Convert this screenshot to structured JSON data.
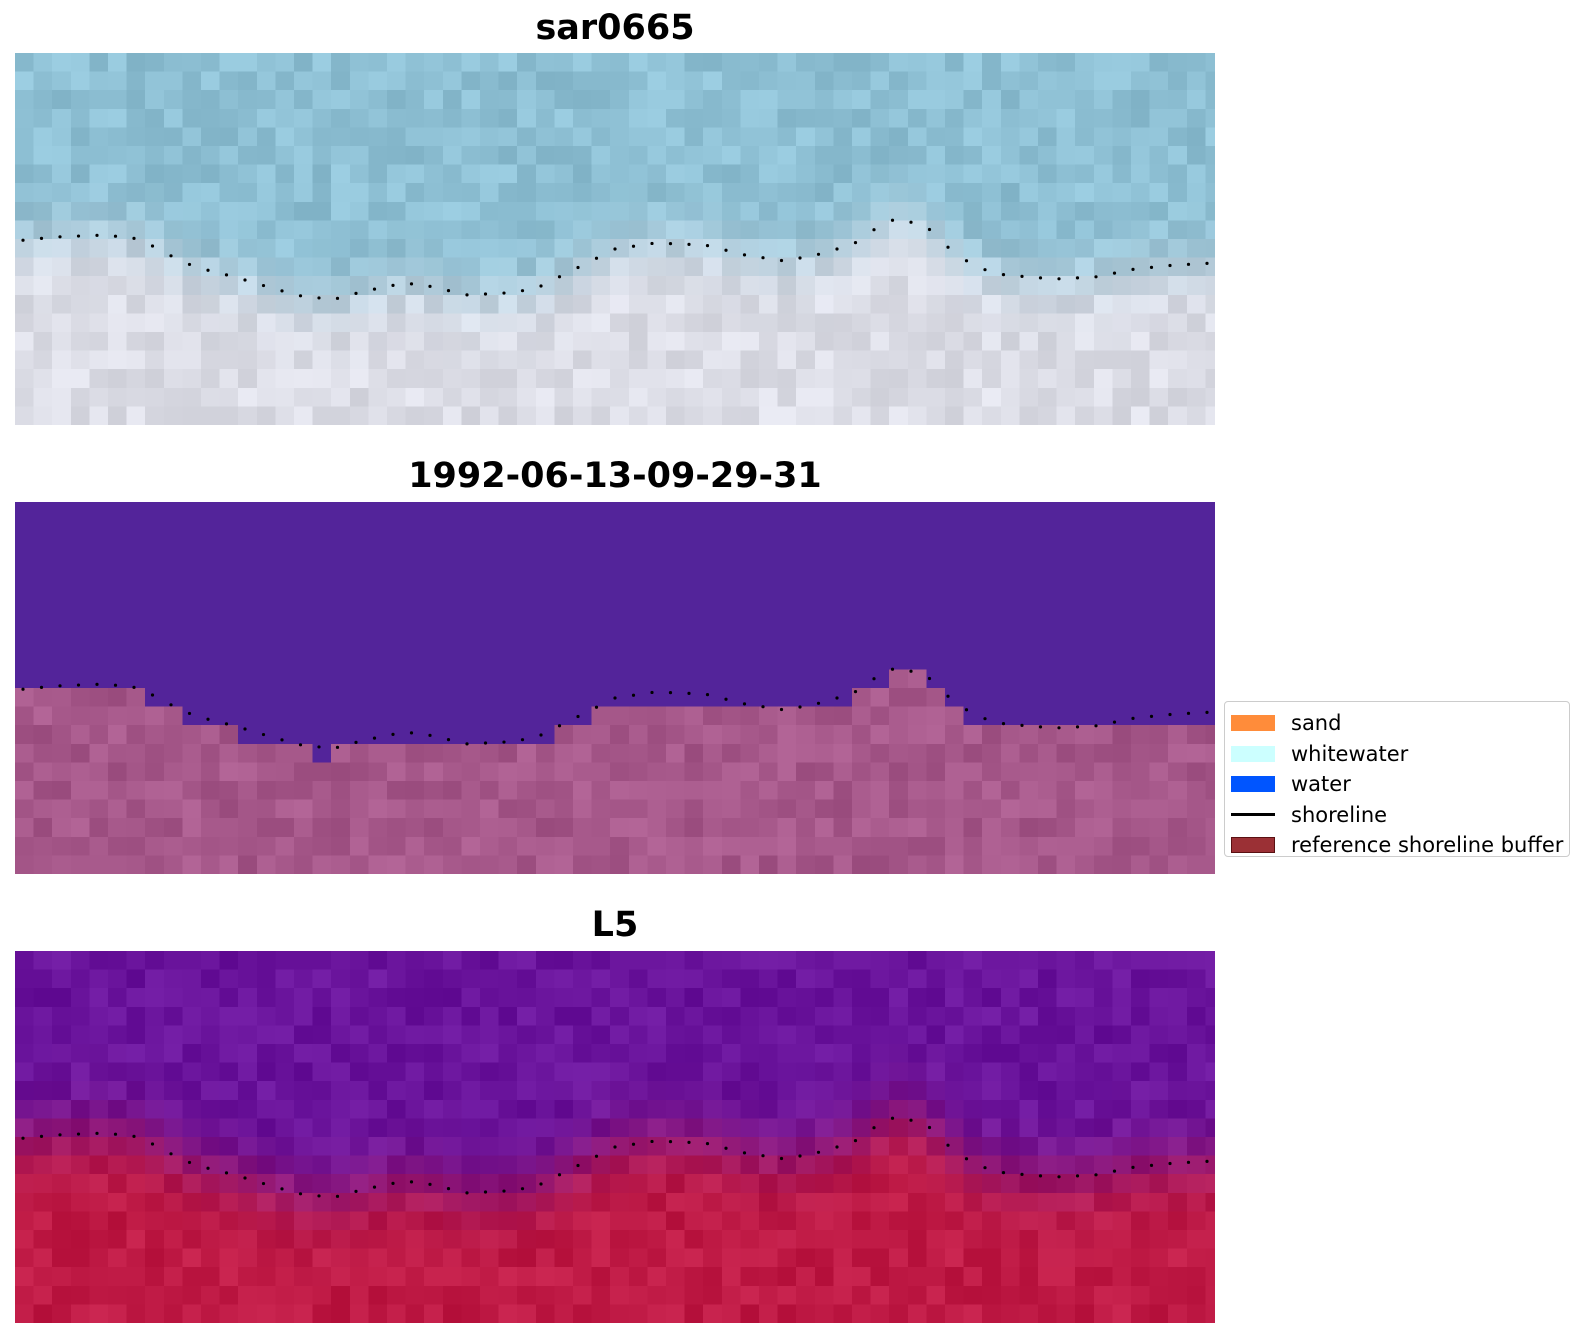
{
  "panels": [
    {
      "title": "sar0665"
    },
    {
      "title": "1992-06-13-09-29-31"
    },
    {
      "title": "L5"
    }
  ],
  "legend": {
    "items": [
      {
        "label": "sand",
        "type": "patch",
        "color": "#ff8c3a",
        "edge": "#ff8c3a"
      },
      {
        "label": "whitewater",
        "type": "patch",
        "color": "#ccffff",
        "edge": "#ccffff"
      },
      {
        "label": "water",
        "type": "patch",
        "color": "#0055ff",
        "edge": "#0055ff"
      },
      {
        "label": "shoreline",
        "type": "line",
        "color": "#000000"
      },
      {
        "label": "reference shoreline buffer",
        "type": "patch",
        "color": "#9b3035",
        "edge": "#5a1012"
      }
    ]
  },
  "colors": {
    "water_rgb": "#8ec0d4",
    "sand_rgb": "#dcdde6",
    "classified_water": "#53249a",
    "classified_land": "#a6588a",
    "index_water": "#6a149c",
    "index_land": "#bf1a45"
  }
}
